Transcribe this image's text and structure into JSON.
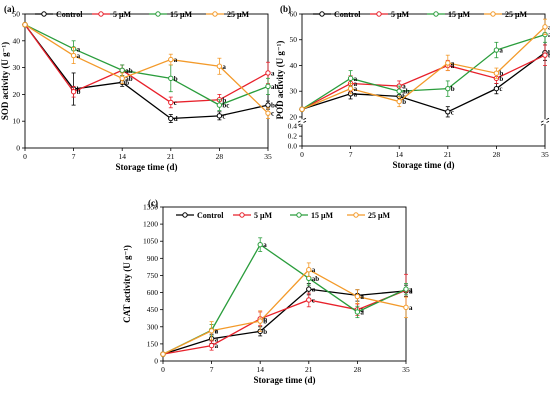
{
  "chart_data": [
    {
      "panel": "(a)",
      "type": "line",
      "x": [
        0,
        7,
        14,
        21,
        28,
        35
      ],
      "xlabel": "Storage time (d)",
      "ylabel": "SOD activity (U g⁻¹)",
      "xlim": [
        0,
        35
      ],
      "ylim": [
        0,
        50
      ],
      "yticks": [
        0,
        10,
        20,
        30,
        40,
        50
      ],
      "xticks": [
        0,
        7,
        14,
        21,
        28,
        35
      ],
      "legend_position": "top",
      "series": [
        {
          "name": "Control",
          "color": "#000000",
          "marker": "circle",
          "values": [
            46,
            22,
            24.5,
            11,
            12,
            16
          ],
          "errors": [
            0,
            6,
            1.5,
            1.5,
            1.5,
            1.5
          ],
          "letters": [
            "",
            "b",
            "b",
            "d",
            "c",
            "bc"
          ]
        },
        {
          "name": "5 μM",
          "color": "#e8212b",
          "marker": "circle",
          "values": [
            46,
            21,
            29,
            17,
            18,
            28
          ],
          "errors": [
            0,
            2,
            2,
            2,
            2,
            4
          ],
          "letters": [
            "",
            "b",
            "a",
            "c",
            "b",
            "a"
          ]
        },
        {
          "name": "15 μM",
          "color": "#2a9d3c",
          "marker": "circle",
          "values": [
            46,
            37,
            29,
            26,
            16,
            23
          ],
          "errors": [
            0,
            3,
            2,
            5,
            2,
            3
          ],
          "letters": [
            "",
            "a",
            "ab",
            "b",
            "bc",
            "ab"
          ]
        },
        {
          "name": "25 μM",
          "color": "#f39a2a",
          "marker": "circle",
          "values": [
            46,
            34.5,
            26,
            33,
            30.5,
            13
          ],
          "errors": [
            0,
            3,
            2,
            2,
            3,
            2
          ],
          "letters": [
            "",
            "a",
            "ab",
            "a",
            "a",
            "c"
          ]
        }
      ]
    },
    {
      "panel": "(b)",
      "type": "line",
      "x": [
        0,
        7,
        14,
        21,
        28,
        35
      ],
      "xlabel": "Storage time (d)",
      "ylabel": "POD activity (U g⁻¹)",
      "xlim": [
        0,
        35
      ],
      "ylim": [
        20,
        60
      ],
      "yticks_upper": [
        20,
        30,
        40,
        50,
        60
      ],
      "yticks_lower": [
        0.0,
        0.2,
        0.4
      ],
      "xticks": [
        0,
        7,
        14,
        21,
        28,
        35
      ],
      "axis_break": true,
      "legend_position": "top",
      "series": [
        {
          "name": "Control",
          "color": "#000000",
          "marker": "circle",
          "values": [
            23,
            29,
            28,
            22,
            31,
            45
          ],
          "errors": [
            0,
            2,
            2,
            2,
            2,
            3
          ],
          "letters": [
            "",
            "a",
            "b",
            "c",
            "c",
            "b"
          ]
        },
        {
          "name": "5 μM",
          "color": "#e8212b",
          "marker": "circle",
          "values": [
            23,
            33,
            32,
            40,
            35,
            44
          ],
          "errors": [
            0,
            3,
            2,
            2,
            2,
            4
          ],
          "letters": [
            "",
            "a",
            "a",
            "a",
            "b",
            "b"
          ]
        },
        {
          "name": "15 μM",
          "color": "#2a9d3c",
          "marker": "circle",
          "values": [
            23,
            35,
            30,
            31,
            46,
            52
          ],
          "errors": [
            0,
            3,
            2,
            3,
            3,
            3
          ],
          "letters": [
            "",
            "a",
            "ab",
            "b",
            "a",
            "ab"
          ]
        },
        {
          "name": "25 μM",
          "color": "#f39a2a",
          "marker": "circle",
          "values": [
            23,
            31,
            26,
            41,
            37,
            55
          ],
          "errors": [
            0,
            2,
            2,
            3,
            2,
            3
          ],
          "letters": [
            "",
            "a",
            "b",
            "a",
            "b",
            "a"
          ]
        }
      ]
    },
    {
      "panel": "(c)",
      "type": "line",
      "x": [
        0,
        7,
        14,
        21,
        28,
        35
      ],
      "xlabel": "Storage time (d)",
      "ylabel": "CAT activity (U g⁻¹)",
      "xlim": [
        0,
        35
      ],
      "ylim": [
        0,
        1350
      ],
      "yticks": [
        0,
        150,
        300,
        450,
        600,
        750,
        900,
        1050,
        1200,
        1350
      ],
      "xticks": [
        0,
        7,
        14,
        21,
        28,
        35
      ],
      "legend_position": "top",
      "series": [
        {
          "name": "Control",
          "color": "#000000",
          "marker": "circle",
          "values": [
            60,
            195,
            260,
            630,
            575,
            615
          ],
          "errors": [
            0,
            40,
            40,
            50,
            50,
            50
          ],
          "letters": [
            "",
            "a",
            "b",
            "a",
            "a",
            "a"
          ]
        },
        {
          "name": "5 μM",
          "color": "#e8212b",
          "marker": "circle",
          "values": [
            60,
            135,
            370,
            535,
            450,
            620
          ],
          "errors": [
            0,
            40,
            60,
            60,
            50,
            140
          ],
          "letters": [
            "",
            "a",
            "b",
            "c",
            "a",
            "a"
          ]
        },
        {
          "name": "15 μM",
          "color": "#2a9d3c",
          "marker": "circle",
          "values": [
            60,
            270,
            1020,
            725,
            430,
            630
          ],
          "errors": [
            0,
            50,
            60,
            60,
            50,
            50
          ],
          "letters": [
            "",
            "a",
            "a",
            "ab",
            "a",
            "a"
          ]
        },
        {
          "name": "25 μM",
          "color": "#f39a2a",
          "marker": "circle",
          "values": [
            60,
            265,
            350,
            800,
            565,
            470
          ],
          "errors": [
            0,
            80,
            90,
            60,
            60,
            90
          ],
          "letters": [
            "",
            "a",
            "b",
            "a",
            "a",
            "a"
          ]
        }
      ]
    }
  ]
}
